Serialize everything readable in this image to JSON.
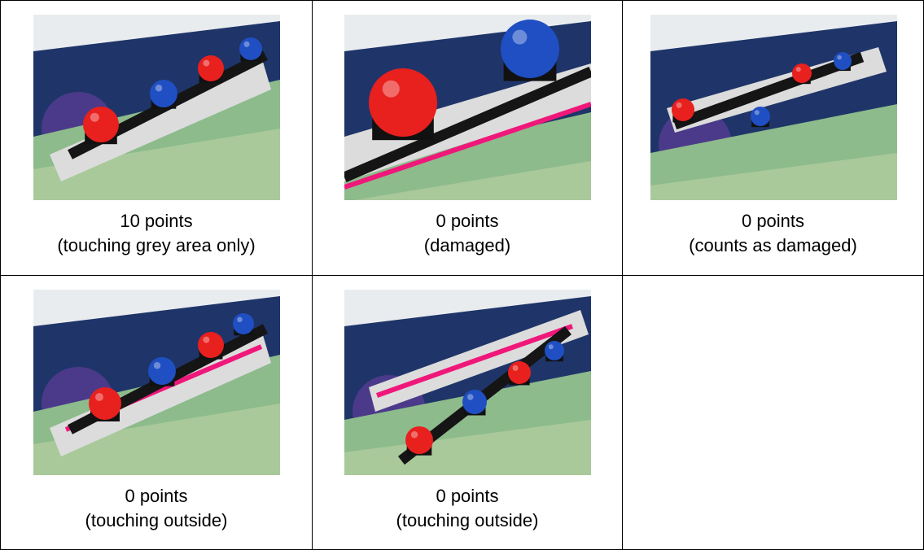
{
  "table": {
    "rows": [
      [
        {
          "points": "10 points",
          "note": "(touching grey area only)"
        },
        {
          "points": "0 points",
          "note": "(damaged)"
        },
        {
          "points": "0 points",
          "note": "(counts as damaged)"
        }
      ],
      [
        {
          "points": "0 points",
          "note": "(touching outside)"
        },
        {
          "points": "0 points",
          "note": "(touching outside)"
        }
      ]
    ]
  }
}
